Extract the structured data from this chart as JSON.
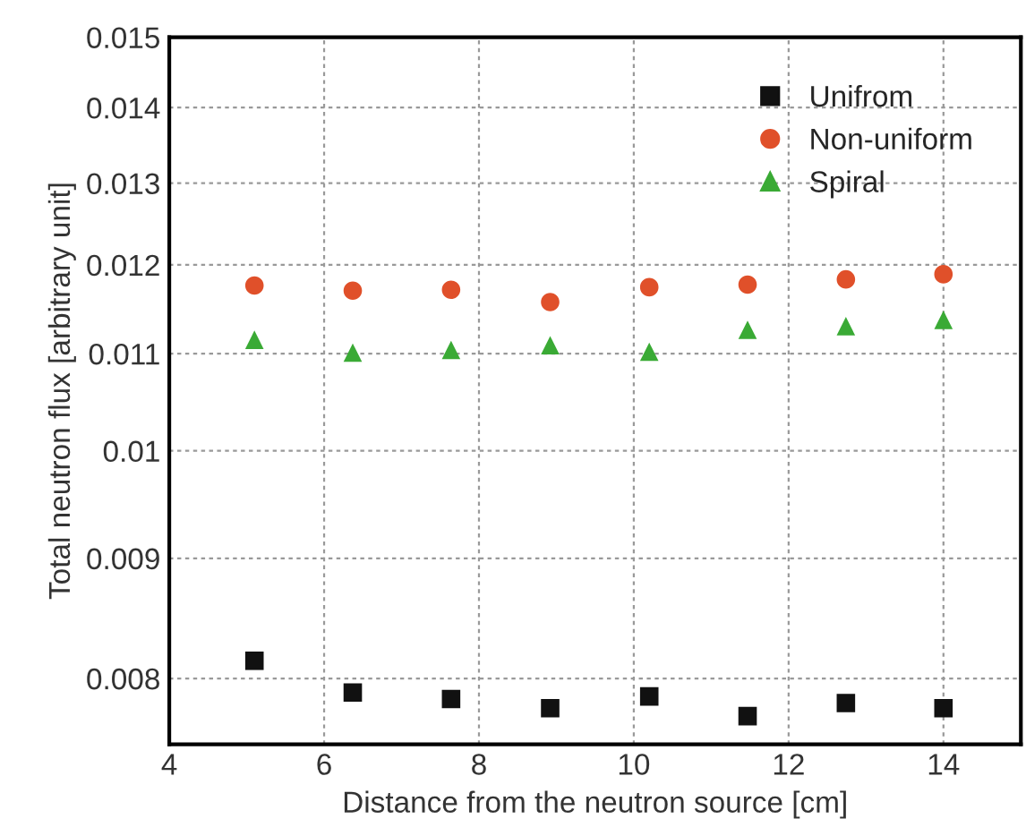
{
  "chart_data": {
    "type": "scatter",
    "xlabel": "Distance from the neutron source [cm]",
    "ylabel": "Total neutron flux [arbitrary unit]",
    "x": [
      5.1,
      6.37,
      7.64,
      8.92,
      10.2,
      11.47,
      12.74,
      14.0
    ],
    "series": [
      {
        "name": "Unifrom",
        "color": "#111111",
        "marker": "square",
        "values": [
          0.00814,
          0.00789,
          0.00784,
          0.00777,
          0.00786,
          0.00771,
          0.00781,
          0.00777
        ]
      },
      {
        "name": "Non-uniform",
        "color": "#e0502a",
        "marker": "circle",
        "values": [
          0.01176,
          0.0117,
          0.01171,
          0.01157,
          0.01174,
          0.01177,
          0.01183,
          0.01189
        ]
      },
      {
        "name": "Spiral",
        "color": "#3aaa35",
        "marker": "triangle",
        "values": [
          0.01115,
          0.01101,
          0.01104,
          0.01109,
          0.01102,
          0.01126,
          0.0113,
          0.01137
        ]
      }
    ],
    "log": "y",
    "xlim": [
      4,
      15
    ],
    "xticks": [
      4,
      6,
      8,
      10,
      12,
      14
    ],
    "ylim": [
      0.0075,
      0.015
    ],
    "yticks": [
      0.008,
      0.009,
      0.01,
      0.011,
      0.012,
      0.013,
      0.014,
      0.015
    ],
    "grid": true,
    "legend": "top right"
  }
}
